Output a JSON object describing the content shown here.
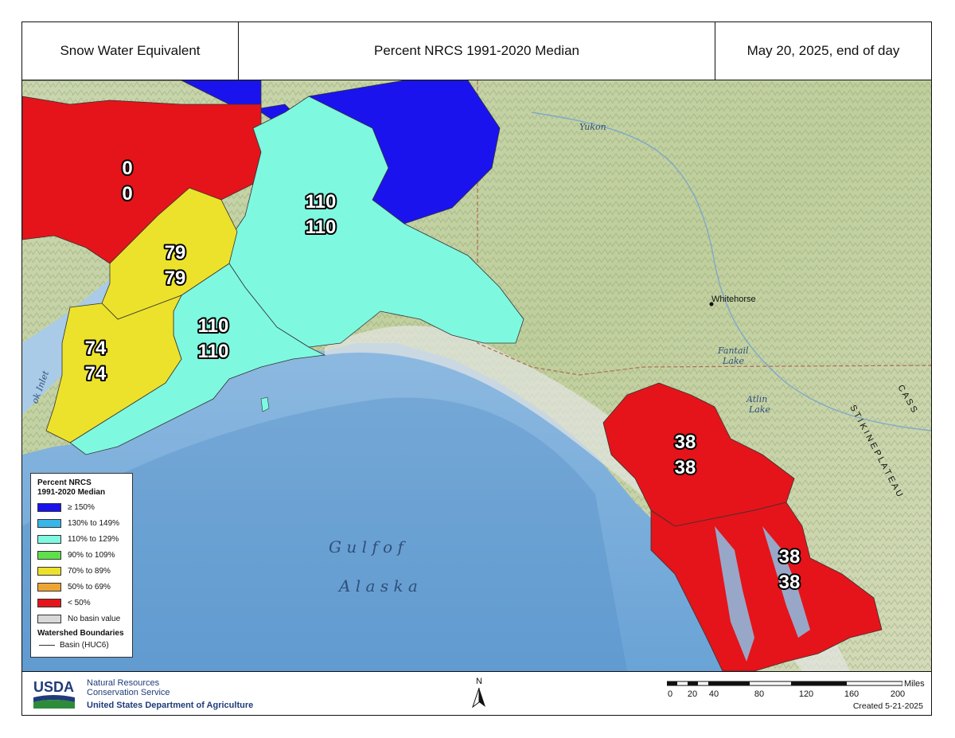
{
  "header": {
    "left": "Snow Water Equivalent",
    "center": "Percent NRCS 1991-2020 Median",
    "right": "May 20, 2025, end of day"
  },
  "map": {
    "basin_labels": [
      {
        "top": "0",
        "bottom": "0"
      },
      {
        "top": "110",
        "bottom": "110"
      },
      {
        "top": "79",
        "bottom": "79"
      },
      {
        "top": "110",
        "bottom": "110"
      },
      {
        "top": "74",
        "bottom": "74"
      },
      {
        "top": "38",
        "bottom": "38"
      },
      {
        "top": "38",
        "bottom": "38"
      }
    ],
    "places": {
      "yukon": "Yukon",
      "whitehorse": "Whitehorse",
      "fantail": "Fantail",
      "fantail2": "Lake",
      "atlin": "Atlin",
      "atlin2": "Lake",
      "cook": "ok Inlet",
      "gulf1": "G u l f   o f",
      "gulf2": "A l a s k a",
      "stikine": "S T I K I N E   P L A T E A U",
      "cass": "C A S S"
    },
    "colors": {
      "ge150": "#1a13ee",
      "r130": "#37b6ea",
      "r110": "#7ff8e0",
      "r90": "#5ee04a",
      "r70": "#ece22b",
      "r50": "#eea432",
      "lt50": "#e4141a",
      "nobasin": "#d8d8d8"
    }
  },
  "legend": {
    "title1": "Percent NRCS",
    "title2": "1991-2020 Median",
    "items": [
      {
        "label": "≥ 150%",
        "color": "#1a13ee"
      },
      {
        "label": "130% to 149%",
        "color": "#37b6ea"
      },
      {
        "label": "110% to 129%",
        "color": "#7ff8e0"
      },
      {
        "label": "90% to 109%",
        "color": "#5ee04a"
      },
      {
        "label": "70% to 89%",
        "color": "#ece22b"
      },
      {
        "label": "50% to 69%",
        "color": "#eea432"
      },
      {
        "label": "< 50%",
        "color": "#e4141a"
      },
      {
        "label": "No basin value",
        "color": "#d8d8d8"
      }
    ],
    "watershed_title": "Watershed Boundaries",
    "basin_label": "Basin (HUC6)"
  },
  "footer": {
    "usda": "USDA",
    "agency1": "Natural Resources",
    "agency2": "Conservation Service",
    "department": "United States Department of Agriculture",
    "north": "N",
    "scale_unit": "Miles",
    "scale_ticks": [
      "0",
      "20",
      "40",
      "80",
      "120",
      "160",
      "200"
    ],
    "created": "Created 5-21-2025"
  }
}
